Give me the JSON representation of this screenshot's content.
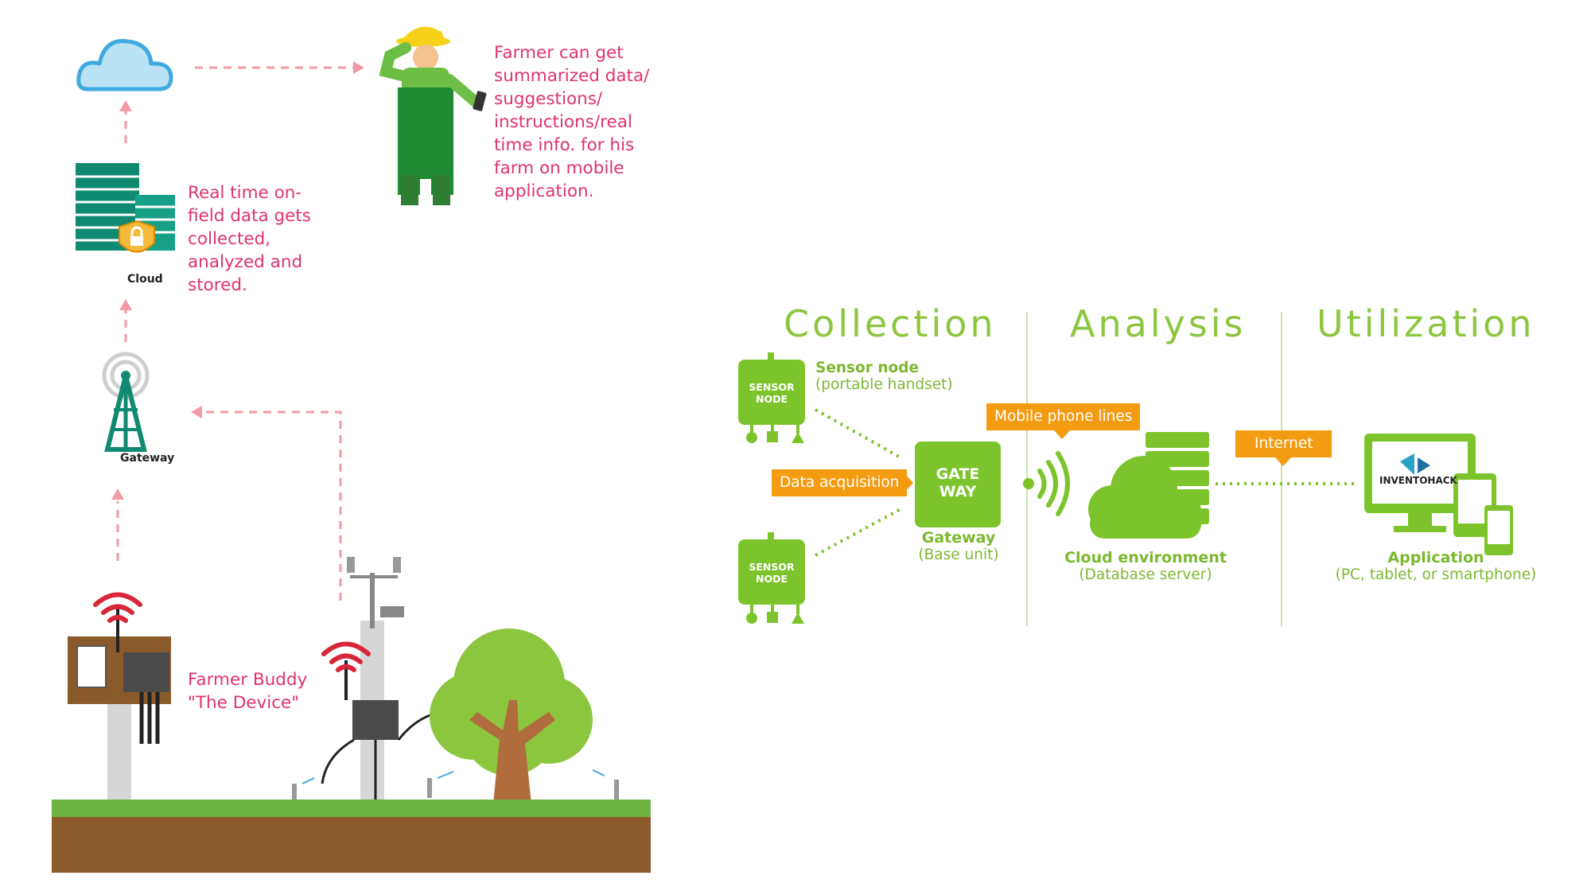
{
  "left": {
    "cloud_label": "Cloud",
    "gateway_label": "Gateway",
    "note_cloud": "Real time on-\nfield data gets\ncollected,\nanalyzed and\nstored.",
    "note_farmer": "Farmer can get\nsummarized data/\nsuggestions/\ninstructions/real\ntime info. for his\nfarm on mobile\napplication.",
    "note_device": "Farmer Buddy\n\"The Device\"",
    "device_brand": "INVENTOHACK"
  },
  "right": {
    "stages": [
      "Collection",
      "Analysis",
      "Utilization"
    ],
    "sensor_node_text_1": "SENSOR",
    "sensor_node_text_2": "NODE",
    "sensor_node_label": "Sensor node",
    "sensor_node_sub": "(portable handset)",
    "data_acquisition": "Data acquisition",
    "gateway_box_1": "GATE",
    "gateway_box_2": "WAY",
    "gateway_label": "Gateway",
    "gateway_sub": "(Base unit)",
    "mobile_lines": "Mobile phone lines",
    "internet": "Internet",
    "cloud_label": "Cloud environment",
    "cloud_sub": "(Database server)",
    "app_brand": "INVENTOHACK",
    "app_label": "Application",
    "app_sub": "(PC, tablet, or smartphone)"
  },
  "colors": {
    "note_pink": "#e0336e",
    "arrow_pink": "#f29aa6",
    "green": "#7dc42c",
    "orange": "#f39c12",
    "teal": "#1a8a72"
  }
}
